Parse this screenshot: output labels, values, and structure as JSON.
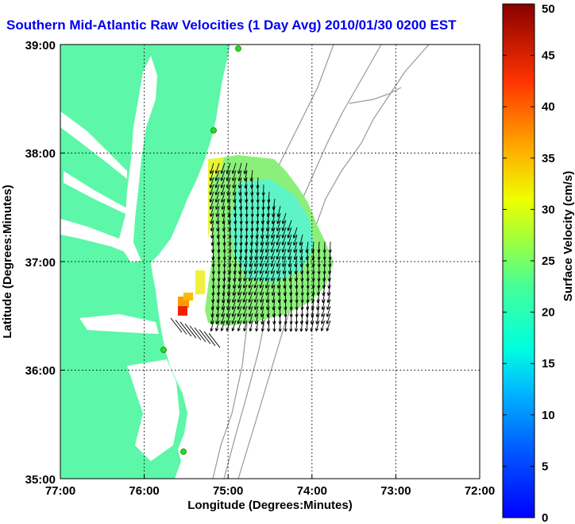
{
  "title": "Southern Mid-Atlantic Raw Velocities (1 Day Avg) 2010/01/30 0200 EST",
  "x_axis": {
    "label": "Longitude (Degrees:Minutes)",
    "ticks": [
      "77:00",
      "76:00",
      "75:00",
      "74:00",
      "73:00",
      "72:00"
    ]
  },
  "y_axis": {
    "label": "Latitude (Degrees:Minutes)",
    "ticks": [
      "39:00",
      "38:00",
      "37:00",
      "36:00",
      "35:00"
    ]
  },
  "colorbar": {
    "label": "Surface Velocity (cm/s)",
    "ticks": [
      "0",
      "5",
      "10",
      "15",
      "20",
      "25",
      "30",
      "35",
      "40",
      "45",
      "50"
    ],
    "min": 0,
    "max": 50
  },
  "colors": {
    "land": "#5cf7a8",
    "title": "#0000ee",
    "station": "#22dd22",
    "bathymetry": "#999999"
  }
}
